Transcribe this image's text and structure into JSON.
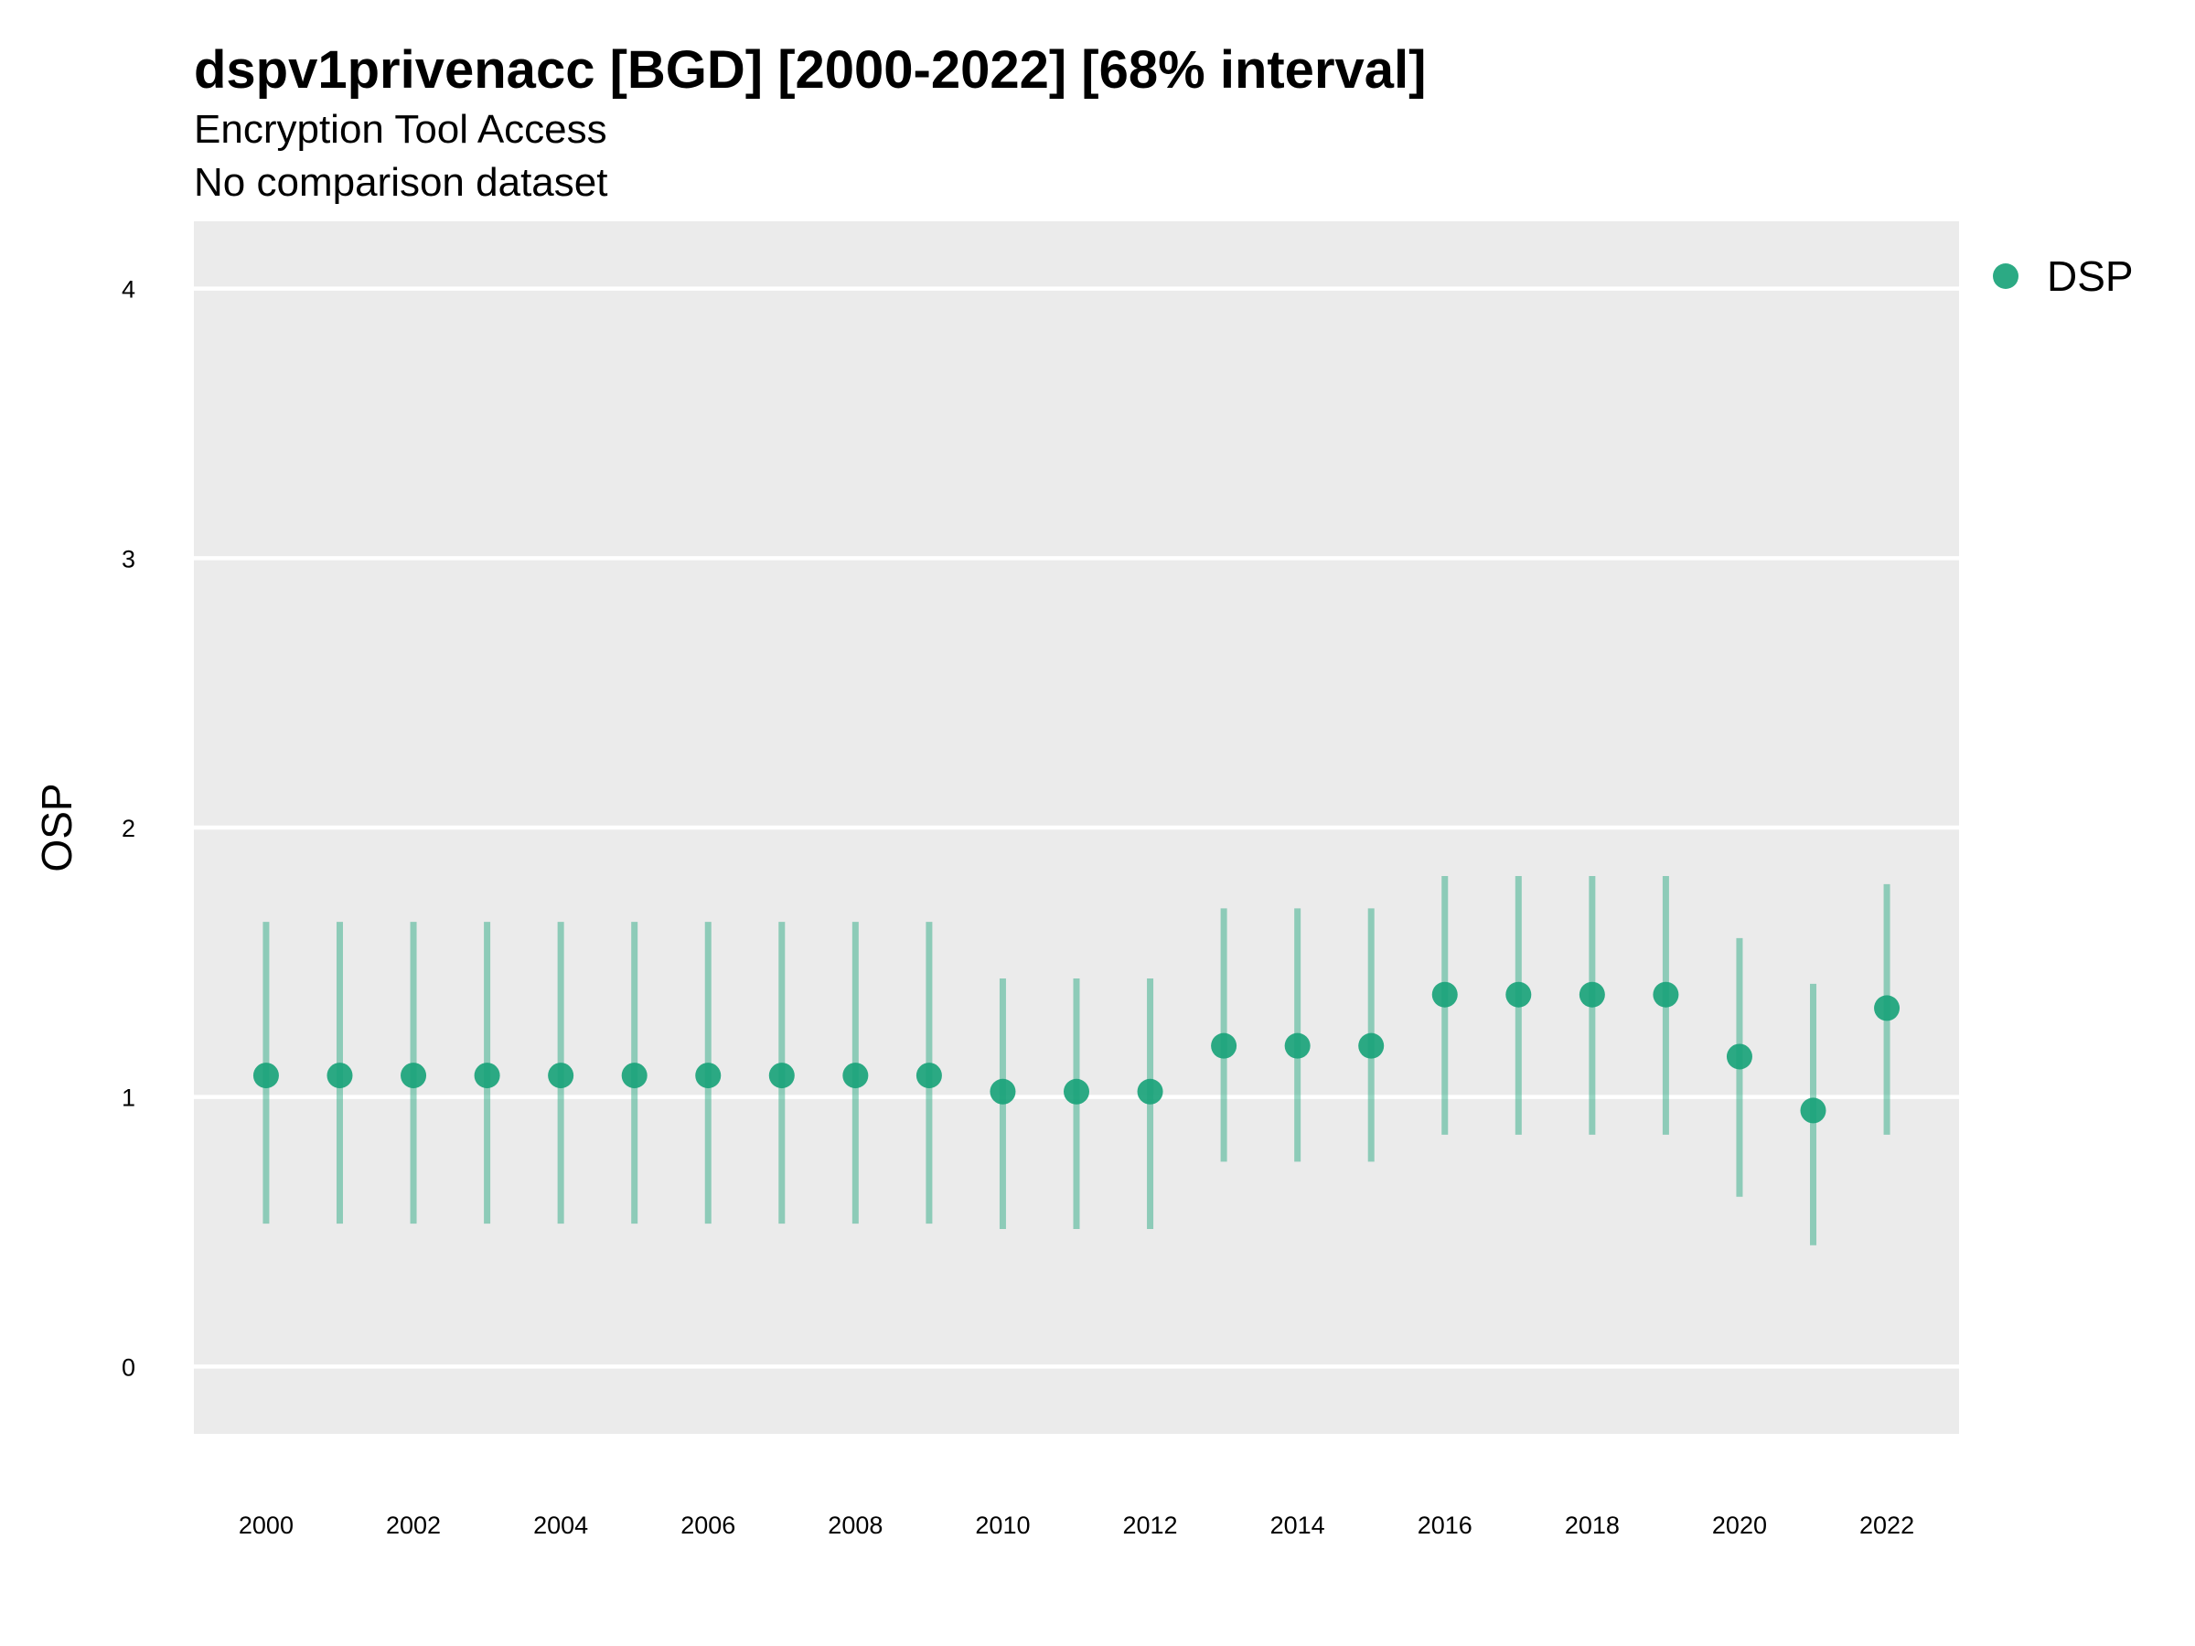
{
  "chart_data": {
    "type": "scatter",
    "title": "dspv1privenacc [BGD] [2000-2022] [68% interval]",
    "subtitle": "Encryption Tool Access",
    "subtitle2": "No comparison dataset",
    "xlabel": "",
    "ylabel": "OSP",
    "ylim": [
      -0.25,
      4.25
    ],
    "yticks": [
      0,
      1,
      2,
      3,
      4
    ],
    "xticks": [
      2000,
      2002,
      2004,
      2006,
      2008,
      2010,
      2012,
      2014,
      2016,
      2018,
      2020,
      2022
    ],
    "grid": true,
    "legend_position": "top-right",
    "series": [
      {
        "name": "DSP",
        "color": "#1aa37a",
        "x": [
          2000,
          2001,
          2002,
          2003,
          2004,
          2005,
          2006,
          2007,
          2008,
          2009,
          2010,
          2011,
          2012,
          2013,
          2014,
          2015,
          2016,
          2017,
          2018,
          2019,
          2020,
          2021,
          2022
        ],
        "y": [
          1.08,
          1.08,
          1.08,
          1.08,
          1.08,
          1.08,
          1.08,
          1.08,
          1.08,
          1.08,
          1.02,
          1.02,
          1.02,
          1.19,
          1.19,
          1.19,
          1.38,
          1.38,
          1.38,
          1.38,
          1.15,
          0.95,
          1.33
        ],
        "lower": [
          0.53,
          0.53,
          0.53,
          0.53,
          0.53,
          0.53,
          0.53,
          0.53,
          0.53,
          0.53,
          0.51,
          0.51,
          0.51,
          0.76,
          0.76,
          0.76,
          0.86,
          0.86,
          0.86,
          0.86,
          0.63,
          0.45,
          0.86
        ],
        "upper": [
          1.65,
          1.65,
          1.65,
          1.65,
          1.65,
          1.65,
          1.65,
          1.65,
          1.65,
          1.65,
          1.44,
          1.44,
          1.44,
          1.7,
          1.7,
          1.7,
          1.82,
          1.82,
          1.82,
          1.82,
          1.59,
          1.42,
          1.79
        ]
      }
    ]
  }
}
